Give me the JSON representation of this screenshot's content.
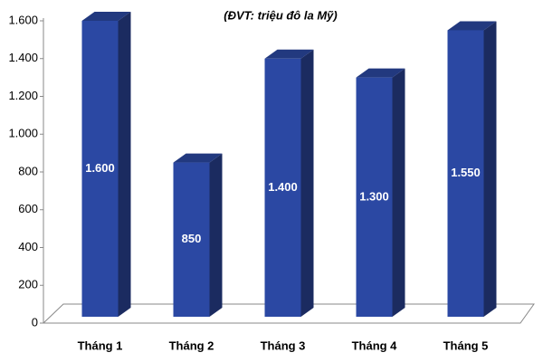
{
  "chart_data": {
    "type": "bar3d",
    "title": "(ĐVT: triệu đô la Mỹ)",
    "categories": [
      "Tháng 1",
      "Tháng 2",
      "Tháng 3",
      "Tháng 4",
      "Tháng 5"
    ],
    "values": [
      1600,
      850,
      1400,
      1300,
      1550
    ],
    "value_labels": [
      "1.600",
      "850",
      "1.400",
      "1.300",
      "1.550"
    ],
    "color": "#2b48a3",
    "ylim": [
      0,
      1600
    ],
    "yticks": [
      0,
      200,
      400,
      600,
      800,
      {
        "value": 1000,
        "label": "1.000"
      },
      {
        "value": 1200,
        "label": "1.200"
      },
      {
        "value": 1400,
        "label": "1.400"
      },
      {
        "value": 1600,
        "label": "1.600"
      }
    ],
    "grid": false
  }
}
